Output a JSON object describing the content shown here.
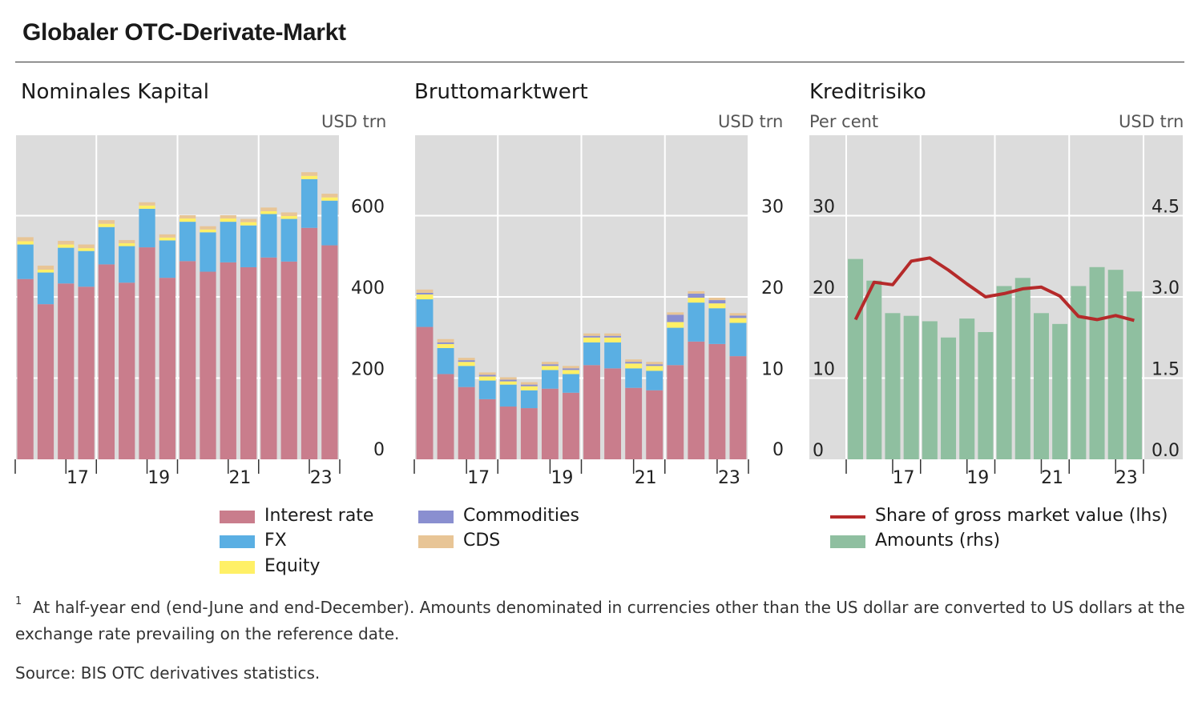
{
  "title": "Globaler OTC-Derivate-Markt",
  "footnote_marker": "1",
  "footnote": "At half-year end (end-June and end-December). Amounts denominated in currencies other than the US dollar are converted to US dollars at the exchange rate prevailing on the reference date.",
  "source": "Source: BIS OTC derivatives statistics.",
  "colors": {
    "interest_rate": "#c97d8c",
    "fx": "#5aafe3",
    "equity": "#fff066",
    "commodities": "#8a8fd0",
    "cds": "#e8c596",
    "share_line": "#b52a2a",
    "amounts": "#8fbfa0",
    "plot_bg": "#dcdcdc",
    "grid": "#ffffff"
  },
  "legends": {
    "left": [
      {
        "key": "interest_rate",
        "label": "Interest rate"
      },
      {
        "key": "fx",
        "label": "FX"
      },
      {
        "key": "equity",
        "label": "Equity"
      }
    ],
    "middle": [
      {
        "key": "commodities",
        "label": "Commodities"
      },
      {
        "key": "cds",
        "label": "CDS"
      }
    ],
    "right": [
      {
        "key": "share_line",
        "label": "Share of gross market value (lhs)",
        "kind": "line"
      },
      {
        "key": "amounts",
        "label": "Amounts (rhs)",
        "kind": "bar"
      }
    ]
  },
  "chart_data": [
    {
      "id": "notional",
      "type": "bar",
      "stacked": true,
      "title": "Nominales Kapital",
      "unit": "USD trn",
      "ylim": [
        0,
        800
      ],
      "yticks": [
        0,
        200,
        400,
        600
      ],
      "ytick_labels": [
        "0",
        "200",
        "400",
        "600"
      ],
      "xtick_labels": [
        "17",
        "19",
        "21",
        "23"
      ],
      "grid": true,
      "series": [
        {
          "key": "interest_rate",
          "name": "Interest rate",
          "values": [
            444,
            382,
            433,
            425,
            480,
            435,
            522,
            447,
            488,
            462,
            485,
            473,
            497,
            487,
            570,
            527
          ]
        },
        {
          "key": "fx",
          "name": "FX",
          "values": [
            85,
            78,
            88,
            88,
            92,
            90,
            95,
            92,
            97,
            97,
            100,
            103,
            107,
            105,
            120,
            110
          ]
        },
        {
          "key": "equity",
          "name": "Equity",
          "values": [
            8,
            7,
            8,
            7,
            8,
            7,
            8,
            7,
            8,
            7,
            8,
            8,
            7,
            7,
            8,
            8
          ]
        },
        {
          "key": "cds",
          "name": "CDS",
          "values": [
            10,
            10,
            9,
            9,
            9,
            8,
            8,
            8,
            8,
            8,
            8,
            8,
            9,
            9,
            9,
            9
          ]
        }
      ]
    },
    {
      "id": "gross",
      "type": "bar",
      "stacked": true,
      "title": "Bruttomarktwert",
      "unit": "USD trn",
      "ylim": [
        0,
        40
      ],
      "yticks": [
        0,
        10,
        20,
        30
      ],
      "ytick_labels": [
        "0",
        "10",
        "20",
        "30"
      ],
      "xtick_labels": [
        "17",
        "19",
        "21",
        "23"
      ],
      "grid": true,
      "series": [
        {
          "key": "interest_rate",
          "name": "Interest rate",
          "values": [
            16.3,
            10.5,
            8.9,
            7.4,
            6.5,
            6.3,
            8.7,
            8.2,
            11.6,
            11.2,
            8.8,
            8.5,
            11.6,
            14.5,
            14.2,
            12.7
          ]
        },
        {
          "key": "fx",
          "name": "FX",
          "values": [
            3.4,
            3.2,
            2.6,
            2.3,
            2.7,
            2.2,
            2.3,
            2.3,
            2.8,
            3.2,
            2.4,
            2.4,
            4.6,
            4.8,
            4.4,
            4.1
          ]
        },
        {
          "key": "equity",
          "name": "Equity",
          "values": [
            0.6,
            0.5,
            0.5,
            0.5,
            0.4,
            0.5,
            0.5,
            0.5,
            0.6,
            0.6,
            0.6,
            0.6,
            0.7,
            0.6,
            0.6,
            0.6
          ]
        },
        {
          "key": "commodities",
          "name": "Commodities",
          "values": [
            0.2,
            0.2,
            0.2,
            0.2,
            0.2,
            0.2,
            0.2,
            0.2,
            0.2,
            0.2,
            0.2,
            0.2,
            0.9,
            0.5,
            0.4,
            0.3
          ]
        },
        {
          "key": "cds",
          "name": "CDS",
          "values": [
            0.4,
            0.4,
            0.3,
            0.3,
            0.3,
            0.3,
            0.3,
            0.3,
            0.3,
            0.3,
            0.3,
            0.3,
            0.3,
            0.3,
            0.3,
            0.3
          ]
        }
      ]
    },
    {
      "id": "credit",
      "type": "bar+line",
      "title": "Kreditrisiko",
      "unit_left": "Per cent",
      "unit_right": "USD trn",
      "ylim_left": [
        0,
        40
      ],
      "ylim_right": [
        0,
        6
      ],
      "yticks_left": [
        0,
        10,
        20,
        30
      ],
      "ytick_labels_left": [
        "0",
        "10",
        "20",
        "30"
      ],
      "yticks_right": [
        0,
        1.5,
        3,
        4.5
      ],
      "ytick_labels_right": [
        "0.0",
        "1.5",
        "3.0",
        "4.5"
      ],
      "xtick_labels": [
        "17",
        "19",
        "21",
        "23"
      ],
      "grid": true,
      "series": [
        {
          "key": "amounts",
          "name": "Amounts (rhs)",
          "axis": "right",
          "kind": "bar",
          "values": [
            3.7,
            3.3,
            2.7,
            2.65,
            2.55,
            2.25,
            2.6,
            2.35,
            3.2,
            3.35,
            2.7,
            2.5,
            3.2,
            3.55,
            3.5,
            3.1
          ]
        },
        {
          "key": "share_line",
          "name": "Share of gross market value (lhs)",
          "axis": "left",
          "kind": "line",
          "values": [
            17.2,
            21.8,
            21.5,
            24.4,
            24.8,
            23.3,
            21.6,
            20.0,
            20.4,
            21.0,
            21.2,
            20.1,
            17.6,
            17.2,
            17.7,
            17.1
          ]
        }
      ]
    }
  ]
}
